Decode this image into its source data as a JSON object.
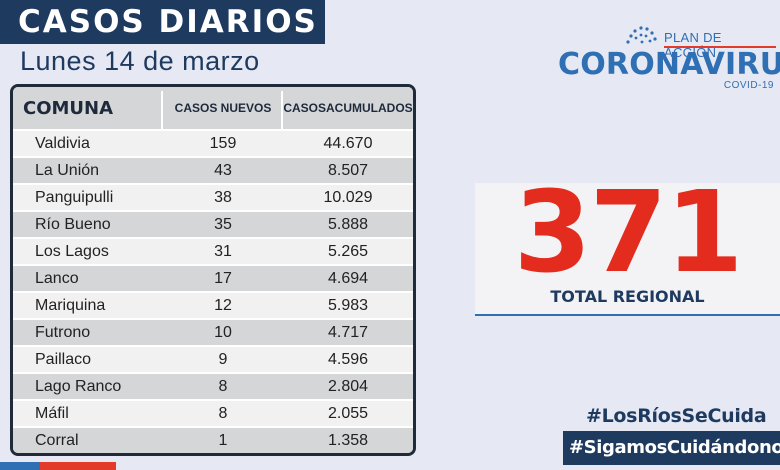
{
  "header": {
    "title": "CASOS DIARIOS",
    "date": "Lunes 14 de marzo"
  },
  "logo": {
    "plan": "PLAN DE ACCIÓN",
    "name": "CORONAVIRUS",
    "sub": "COVID-19"
  },
  "table": {
    "headers": {
      "comuna": "COMUNA",
      "nuevos": "CASOS NUEVOS",
      "acum_line1": "CASOS",
      "acum_line2": "ACUMULADOS"
    },
    "rows": [
      {
        "comuna": "Valdivia",
        "nuevos": "159",
        "acumulados": "44.670"
      },
      {
        "comuna": "La Unión",
        "nuevos": "43",
        "acumulados": "8.507"
      },
      {
        "comuna": "Panguipulli",
        "nuevos": "38",
        "acumulados": "10.029"
      },
      {
        "comuna": "Río Bueno",
        "nuevos": "35",
        "acumulados": "5.888"
      },
      {
        "comuna": "Los Lagos",
        "nuevos": "31",
        "acumulados": "5.265"
      },
      {
        "comuna": "Lanco",
        "nuevos": "17",
        "acumulados": "4.694"
      },
      {
        "comuna": "Mariquina",
        "nuevos": "12",
        "acumulados": "5.983"
      },
      {
        "comuna": "Futrono",
        "nuevos": "10",
        "acumulados": "4.717"
      },
      {
        "comuna": "Paillaco",
        "nuevos": "9",
        "acumulados": "4.596"
      },
      {
        "comuna": "Lago Ranco",
        "nuevos": "8",
        "acumulados": "2.804"
      },
      {
        "comuna": "Máfil",
        "nuevos": "8",
        "acumulados": "2.055"
      },
      {
        "comuna": "Corral",
        "nuevos": "1",
        "acumulados": "1.358"
      }
    ]
  },
  "total": {
    "value": "371",
    "label": "TOTAL REGIONAL"
  },
  "hashtags": {
    "primary": "#LosRíosSeCuida",
    "secondary": "#SigamosCuidándono"
  },
  "colors": {
    "navy": "#1e3a5f",
    "brand_blue": "#2f6fb3",
    "red": "#e32b1e",
    "row_alt": "#d5d6d8",
    "background": "#e6e9f3"
  }
}
